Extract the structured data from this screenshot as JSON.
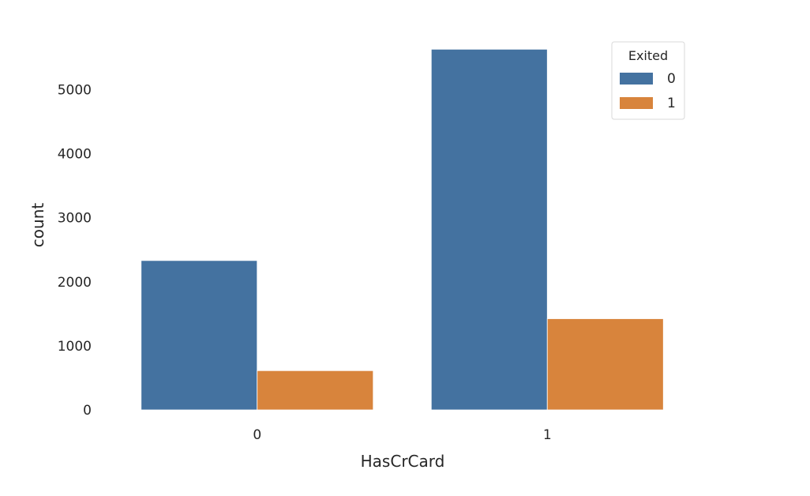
{
  "chart_data": {
    "type": "bar",
    "title": "",
    "xlabel": "HasCrCard",
    "ylabel": "count",
    "categories": [
      "0",
      "1"
    ],
    "series": [
      {
        "name": "0",
        "values": [
          2332,
          5631
        ],
        "color": "#4472a0"
      },
      {
        "name": "1",
        "values": [
          613,
          1424
        ],
        "color": "#d8843c"
      }
    ],
    "ylim": [
      0,
      5800
    ],
    "yticks": [
      0,
      1000,
      2000,
      3000,
      4000,
      5000
    ],
    "legend": {
      "title": "Exited",
      "placement": "top-right"
    },
    "grid": false
  }
}
